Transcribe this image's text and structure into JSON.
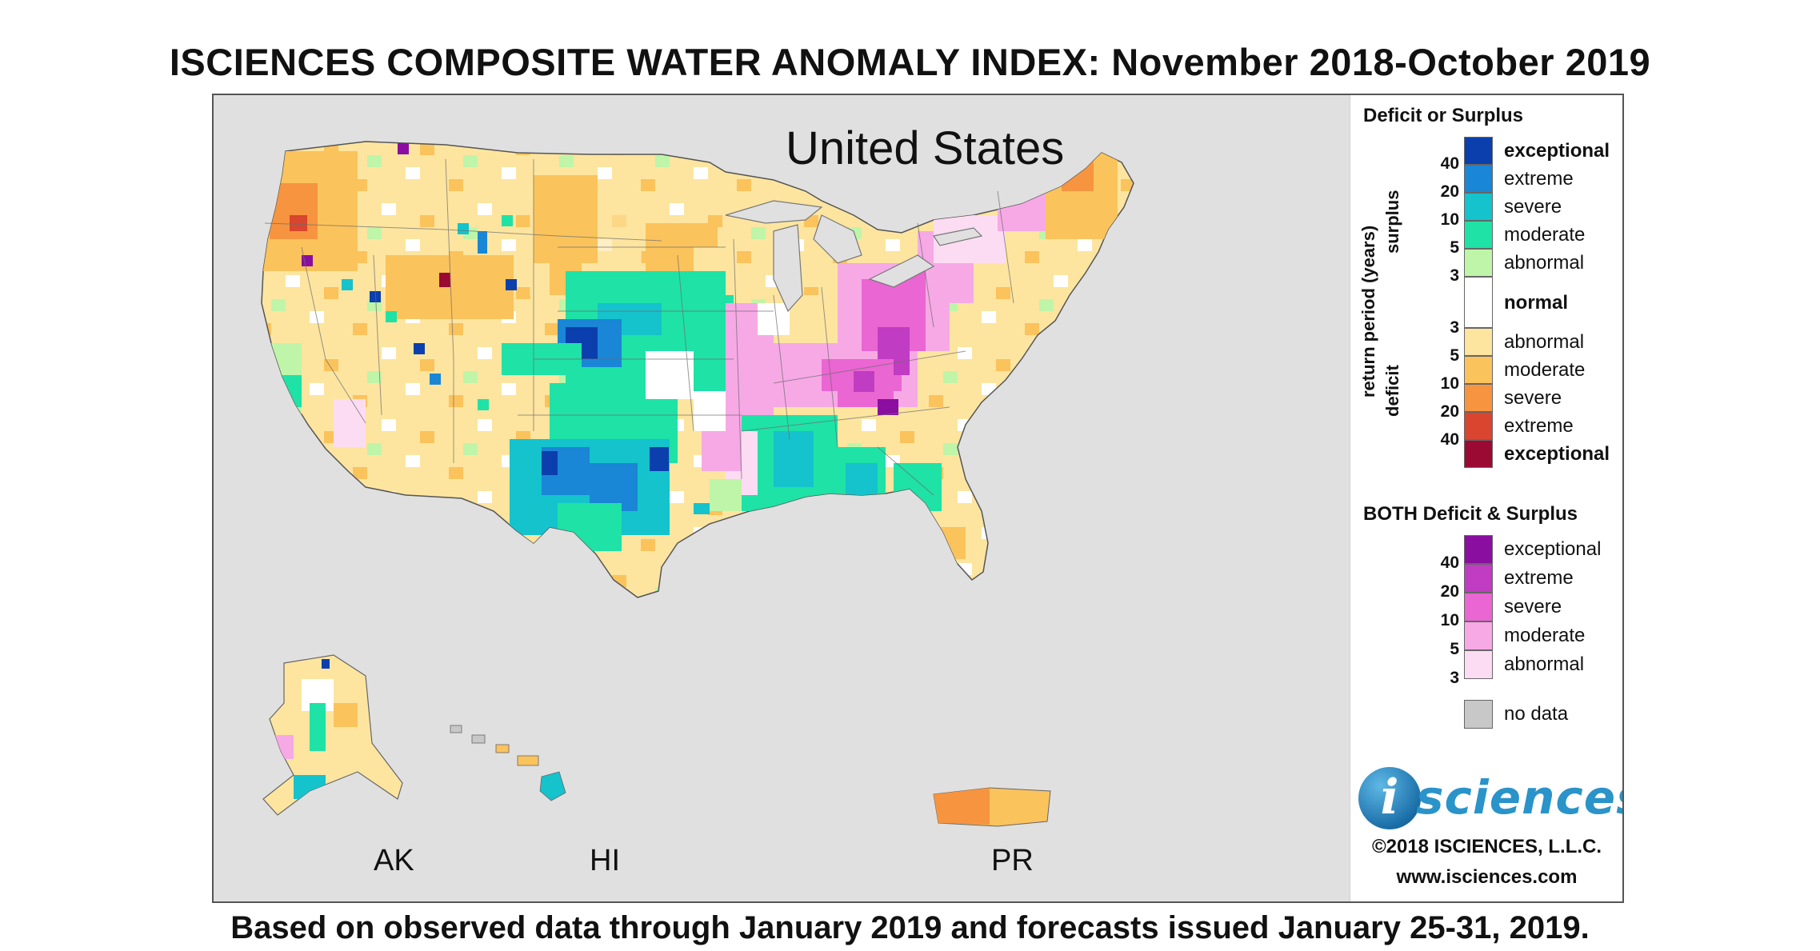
{
  "title": "ISCIENCES COMPOSITE WATER ANOMALY INDEX: November 2018-October 2019",
  "footer": "Based on observed data through January 2019 and forecasts issued January 25-31, 2019.",
  "map": {
    "name": "United States",
    "insets": [
      "AK",
      "HI",
      "PR"
    ]
  },
  "colors": {
    "surplus_exceptional": "#0b3fae",
    "surplus_extreme": "#1a86d6",
    "surplus_severe": "#14c3cc",
    "surplus_moderate": "#1ee2a6",
    "surplus_abnormal": "#bff5a8",
    "normal": "#ffffff",
    "deficit_abnormal": "#fde5a0",
    "deficit_moderate": "#fbc35c",
    "deficit_severe": "#f7943f",
    "deficit_extreme": "#d9452e",
    "deficit_exceptional": "#9b0a33",
    "both_exceptional": "#8a0ea0",
    "both_extreme": "#c03cc2",
    "both_severe": "#ea66d2",
    "both_moderate": "#f7a9e6",
    "both_abnormal": "#fcdcf2",
    "no_data": "#c8c8c8",
    "map_background": "#e0e0e0"
  },
  "legend": {
    "deficit_surplus_heading": "Deficit or Surplus",
    "axis_label": "return period (years)",
    "surplus_label": "surplus",
    "deficit_label": "deficit",
    "surplus_numbers": [
      "40",
      "20",
      "10",
      "5",
      "3"
    ],
    "deficit_numbers": [
      "3",
      "5",
      "10",
      "20",
      "40"
    ],
    "surplus_items": [
      "exceptional",
      "extreme",
      "severe",
      "moderate",
      "abnormal"
    ],
    "normal_label": "normal",
    "deficit_items": [
      "abnormal",
      "moderate",
      "severe",
      "extreme",
      "exceptional"
    ],
    "both_heading": "BOTH Deficit & Surplus",
    "both_numbers": [
      "40",
      "20",
      "10",
      "5",
      "3"
    ],
    "both_items": [
      "exceptional",
      "extreme",
      "severe",
      "moderate",
      "abnormal"
    ],
    "no_data_label": "no data"
  },
  "logo": {
    "mark": "i",
    "text": "sciences"
  },
  "copyright": "©2018 ISCIENCES, L.L.C.",
  "website": "www.isciences.com"
}
